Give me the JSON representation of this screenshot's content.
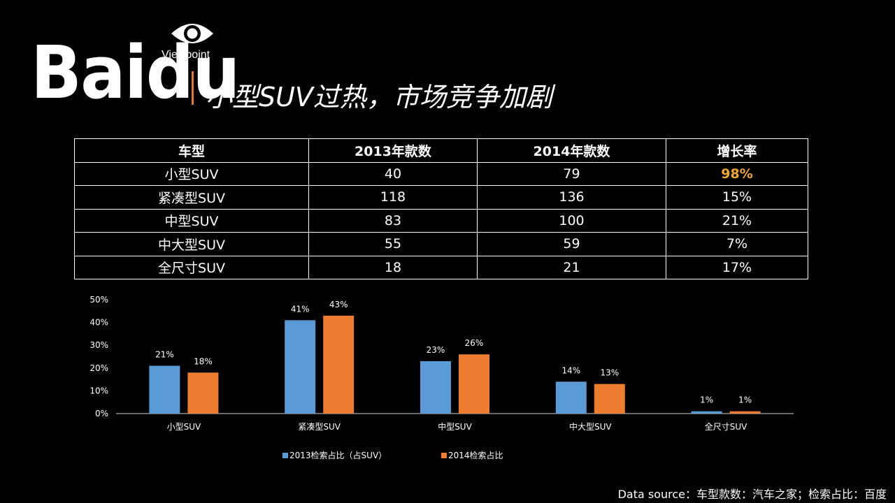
{
  "header": {
    "logo_text": "Baidu",
    "logo_sub": "Viewpoint",
    "title": "小型SUV过热，市场竞争加剧"
  },
  "table": {
    "headers": [
      "车型",
      "2013年款数",
      "2014年款数",
      "增长率"
    ],
    "rows": [
      [
        "小型SUV",
        "40",
        "79",
        "98%"
      ],
      [
        "紧凑型SUV",
        "118",
        "136",
        "15%"
      ],
      [
        "中型SUV",
        "83",
        "100",
        "21%"
      ],
      [
        "中大型SUV",
        "55",
        "59",
        "7%"
      ],
      [
        "全尺寸SUV",
        "18",
        "21",
        "17%"
      ]
    ],
    "highlight_color": "#f0a830"
  },
  "chart_data": {
    "type": "bar",
    "categories": [
      "小型SUV",
      "紧凑型SUV",
      "中型SUV",
      "中大型SUV",
      "全尺寸SUV"
    ],
    "series": [
      {
        "name": "2013检索占比（占SUV）",
        "values": [
          21,
          41,
          23,
          14,
          1
        ],
        "color": "#5b9bd5"
      },
      {
        "name": "2014检索占比",
        "values": [
          18,
          43,
          26,
          13,
          1
        ],
        "color": "#ed7d31"
      }
    ],
    "y_ticks": [
      "0%",
      "10%",
      "20%",
      "30%",
      "40%",
      "50%"
    ],
    "ylim": [
      0,
      50
    ],
    "value_suffix": "%",
    "legend": "bottom"
  },
  "footer": {
    "source": "Data source：车型款数：汽车之家；检索占比：百度"
  }
}
